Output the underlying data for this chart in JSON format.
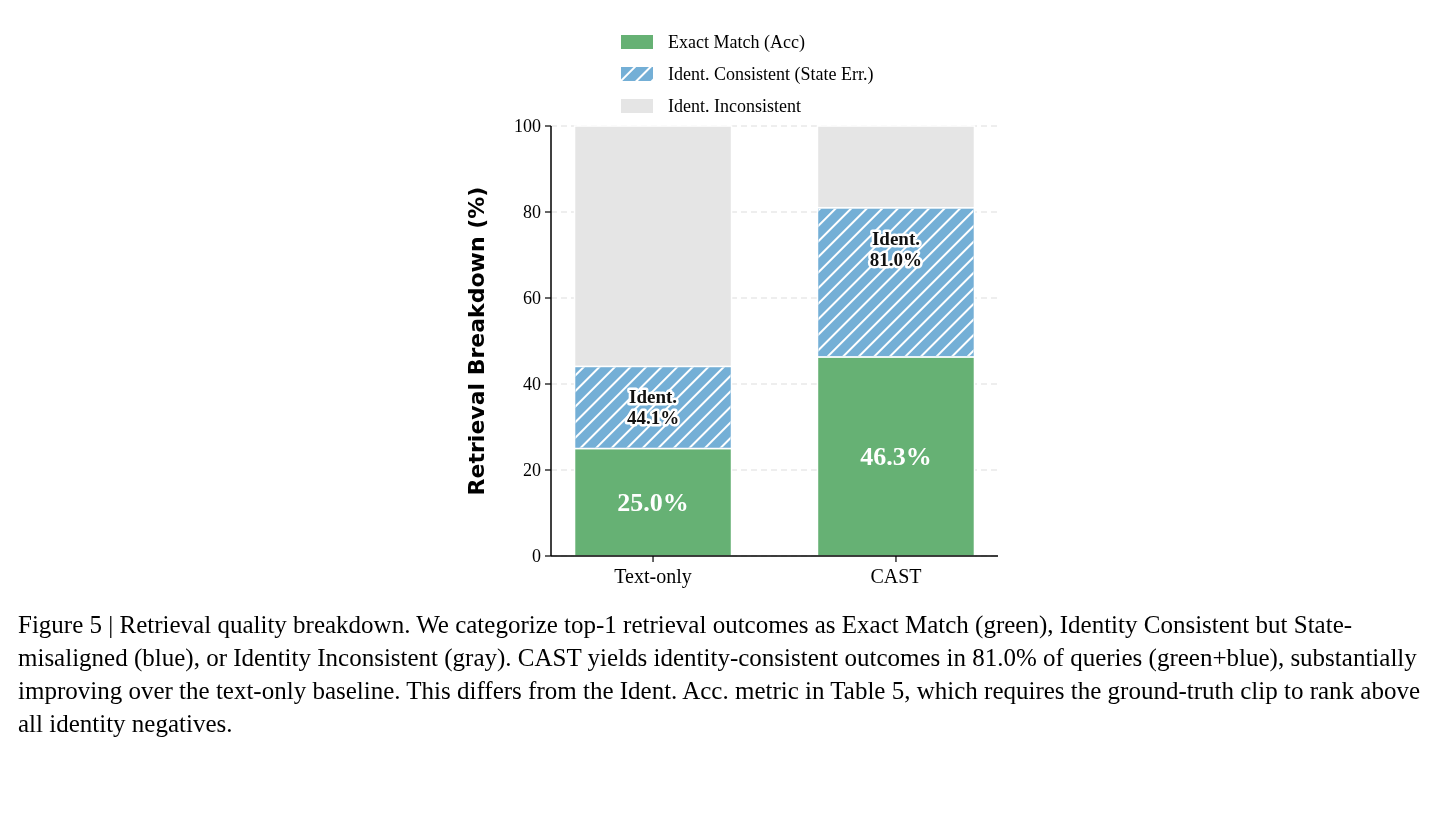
{
  "chart_data": {
    "type": "bar",
    "stacked": true,
    "categories": [
      "Text-only",
      "CAST"
    ],
    "series": [
      {
        "name": "Exact Match (Acc)",
        "color": "#66b174",
        "values": [
          25.0,
          46.3
        ],
        "value_labels": [
          "25.0%",
          "46.3%"
        ]
      },
      {
        "name": "Ident. Consistent (State Err.)",
        "color": "#74afd6",
        "values": [
          19.1,
          34.7
        ]
      },
      {
        "name": "Ident. Inconsistent",
        "color": "#e5e5e5",
        "values": [
          55.9,
          19.0
        ]
      }
    ],
    "ylabel": "Retrieval Breakdown (%)",
    "ylim": [
      0,
      100
    ],
    "yticks": [
      0,
      20,
      40,
      60,
      80,
      100
    ],
    "grid": "y",
    "legend": "top",
    "annotations": [
      {
        "text": "Ident.\n44.1%",
        "x": "Text-only",
        "y": 44.1
      },
      {
        "text": "Ident.\n81.0%",
        "x": "CAST",
        "y": 81.0
      },
      "Figure 5 | Retrieval quality breakdown. We categorize top-1 retrieval outcomes as Exact Match (green), Identity Consistent but State-misaligned (blue), or Identity Inconsistent (gray). CAST yields identity-consistent outcomes in 81.0% of queries (green+blue), substantially improving over the text-only baseline. This differs from the Ident. Acc. metric in Table 5, which requires the ground-truth clip to rank above all identity negatives."
    ]
  }
}
